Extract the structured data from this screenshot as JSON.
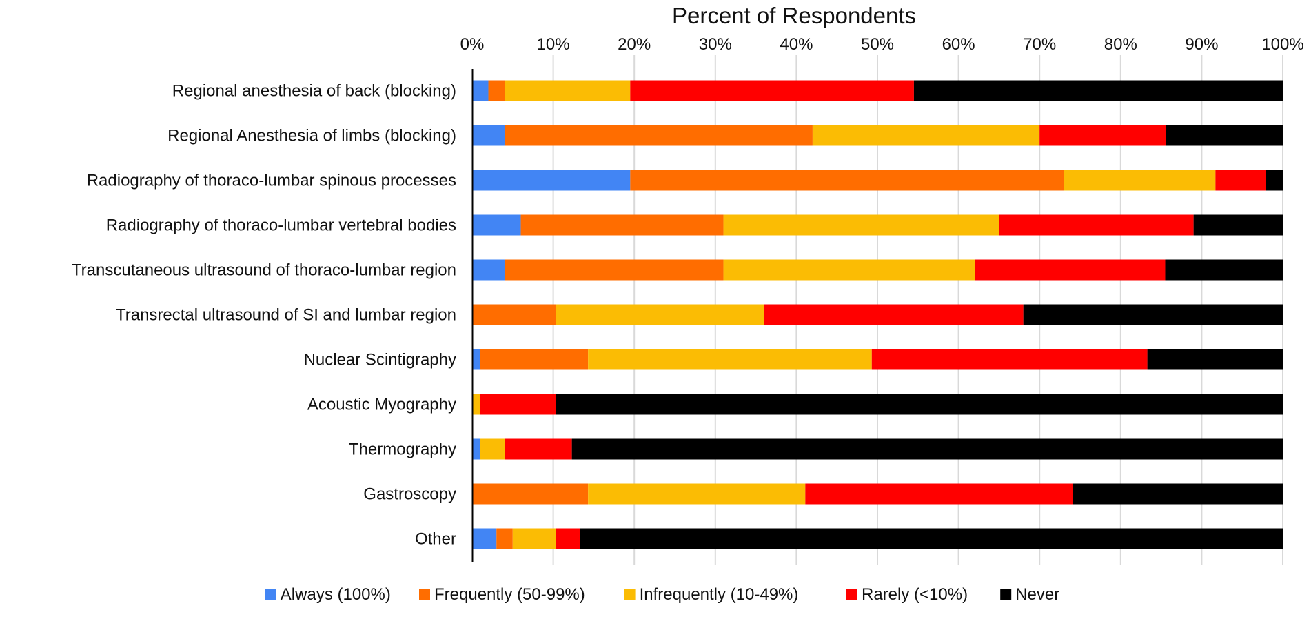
{
  "chart_data": {
    "type": "bar",
    "orientation": "horizontal",
    "stacked": "percent",
    "title": "",
    "xlabel": "Percent of Respondents",
    "ylabel": "",
    "xlim": [
      0,
      100
    ],
    "x_ticks": [
      {
        "value": 0,
        "label": "0%"
      },
      {
        "value": 10,
        "label": "10%"
      },
      {
        "value": 20,
        "label": "20%"
      },
      {
        "value": 30,
        "label": "30%"
      },
      {
        "value": 40,
        "label": "40%"
      },
      {
        "value": 50,
        "label": "50%"
      },
      {
        "value": 60,
        "label": "60%"
      },
      {
        "value": 70,
        "label": "70%"
      },
      {
        "value": 80,
        "label": "80%"
      },
      {
        "value": 90,
        "label": "90%"
      },
      {
        "value": 100,
        "label": "100%"
      }
    ],
    "grid": "vertical",
    "legend_position": "bottom",
    "categories": [
      "Regional anesthesia of back (blocking)",
      "Regional Anesthesia of limbs (blocking)",
      "Radiography of thoraco-lumbar spinous processes",
      "Radiography of thoraco-lumbar vertebral bodies",
      "Transcutaneous ultrasound of thoraco-lumbar region",
      "Transrectal ultrasound of SI and lumbar region",
      "Nuclear Scintigraphy",
      "Acoustic Myography",
      "Thermography",
      "Gastroscopy",
      "Other"
    ],
    "series": [
      {
        "name": "Always (100%)",
        "color": "#4285f4",
        "values": [
          2,
          4,
          19.5,
          6,
          4,
          0,
          1,
          0,
          1,
          0,
          3
        ]
      },
      {
        "name": "Frequently (50-99%)",
        "color": "#ff6d00",
        "values": [
          2,
          38,
          53.5,
          25,
          27,
          10.3,
          13.3,
          0,
          0,
          14.3,
          2
        ]
      },
      {
        "name": "Infrequently (10-49%)",
        "color": "#fbbc04",
        "values": [
          15.5,
          28,
          18.7,
          34,
          31,
          25.7,
          35,
          1,
          3,
          26.8,
          5.3
        ]
      },
      {
        "name": "Rarely (<10%)",
        "color": "#ff0000",
        "values": [
          35,
          15.6,
          6.2,
          24,
          23.5,
          32,
          34,
          9.3,
          8.3,
          33,
          3
        ]
      },
      {
        "name": "Never",
        "color": "#000000",
        "values": [
          45.5,
          14.4,
          2.1,
          11,
          14.5,
          32,
          16.7,
          89.7,
          87.7,
          25.9,
          86.7
        ]
      }
    ]
  }
}
